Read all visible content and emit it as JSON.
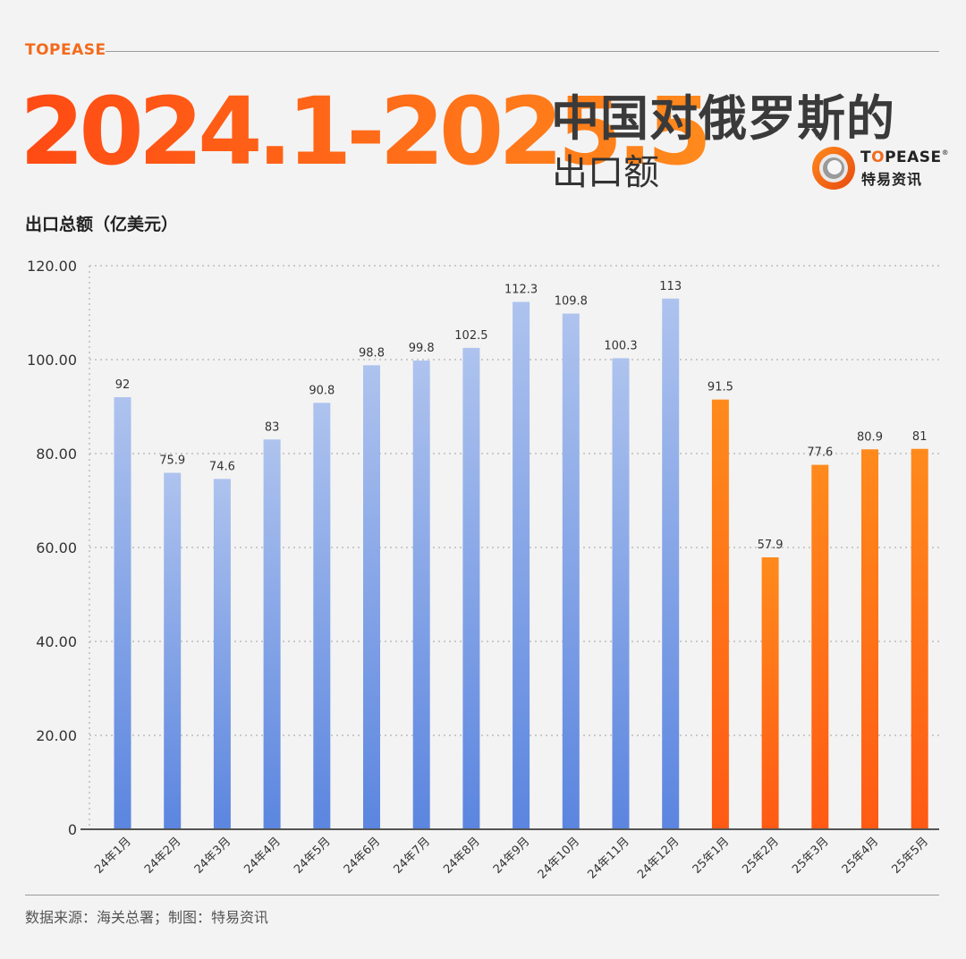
{
  "header": {
    "brand_small": "TOPEASE",
    "range": "2024.1-2025.5",
    "title_main": "中国对俄罗斯的",
    "title_sub": "出口额"
  },
  "logo": {
    "name_en_prefix": "T",
    "name_en_o": "O",
    "name_en_suffix": "PEASE",
    "registered_mark": "®",
    "name_cn": "特易资讯",
    "icon": "topease-logo-icon"
  },
  "colors": {
    "accent_orange": "#ff6a14",
    "bar_2024_top": "#aec3ee",
    "bar_2024_bottom": "#5b85df",
    "bar_2025_top": "#ff8a1c",
    "bar_2025_bottom": "#ff5a14"
  },
  "footer": {
    "source": "数据来源：海关总署；制图：特易资讯"
  },
  "chart_data": {
    "type": "bar",
    "ylabel": "出口总额（亿美元）",
    "ylim": [
      0,
      120
    ],
    "yticks": [
      "0",
      "20.00",
      "40.00",
      "60.00",
      "80.00",
      "100.00",
      "120.00"
    ],
    "grid": true,
    "categories": [
      "24年1月",
      "24年2月",
      "24年3月",
      "24年4月",
      "24年5月",
      "24年6月",
      "24年7月",
      "24年8月",
      "24年9月",
      "24年10月",
      "24年11月",
      "24年12月",
      "25年1月",
      "25年2月",
      "25年3月",
      "25年4月",
      "25年5月"
    ],
    "values": [
      92,
      75.9,
      74.6,
      83,
      90.8,
      98.8,
      99.8,
      102.5,
      112.3,
      109.8,
      100.3,
      113,
      91.5,
      57.9,
      77.6,
      80.9,
      81
    ],
    "value_labels": [
      "92",
      "75.9",
      "74.6",
      "83",
      "90.8",
      "98.8",
      "99.8",
      "102.5",
      "112.3",
      "109.8",
      "100.3",
      "113",
      "91.5",
      "57.9",
      "77.6",
      "80.9",
      "81"
    ]
  }
}
